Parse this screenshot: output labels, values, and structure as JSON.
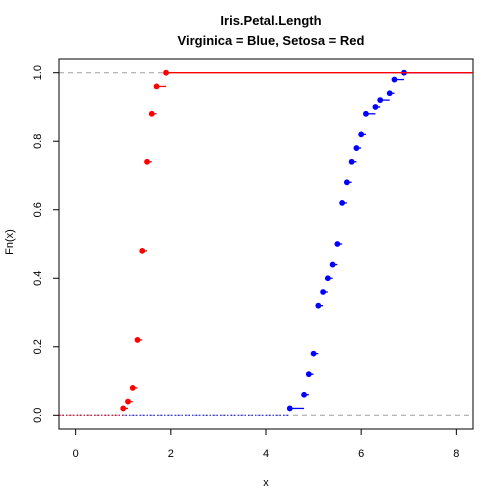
{
  "chart_data": {
    "type": "scatter",
    "subtype": "ecdf-step",
    "title": "Iris.Petal.Length",
    "subtitle": "Virginica = Blue, Setosa = Red",
    "xlabel": "x",
    "ylabel": "Fn(x)",
    "xlim": [
      -0.35,
      8.35
    ],
    "ylim": [
      -0.04,
      1.04
    ],
    "x_ticks": [
      "0",
      "2",
      "4",
      "6",
      "8"
    ],
    "y_ticks": [
      "0.0",
      "0.2",
      "0.4",
      "0.6",
      "0.8",
      "1.0"
    ],
    "grid": false,
    "reference_lines_y": [
      0,
      1
    ],
    "series": [
      {
        "color": "#0000ff",
        "points": [
          {
            "x": 4.5,
            "y": 0.02
          },
          {
            "x": 4.8,
            "y": 0.06
          },
          {
            "x": 4.9,
            "y": 0.12
          },
          {
            "x": 5.0,
            "y": 0.18
          },
          {
            "x": 5.1,
            "y": 0.32
          },
          {
            "x": 5.2,
            "y": 0.36
          },
          {
            "x": 5.3,
            "y": 0.4
          },
          {
            "x": 5.4,
            "y": 0.44
          },
          {
            "x": 5.5,
            "y": 0.5
          },
          {
            "x": 5.6,
            "y": 0.62
          },
          {
            "x": 5.7,
            "y": 0.68
          },
          {
            "x": 5.8,
            "y": 0.74
          },
          {
            "x": 5.9,
            "y": 0.78
          },
          {
            "x": 6.0,
            "y": 0.82
          },
          {
            "x": 6.1,
            "y": 0.88
          },
          {
            "x": 6.3,
            "y": 0.9
          },
          {
            "x": 6.4,
            "y": 0.92
          },
          {
            "x": 6.6,
            "y": 0.94
          },
          {
            "x": 6.7,
            "y": 0.98
          },
          {
            "x": 6.9,
            "y": 1.0
          }
        ]
      },
      {
        "color": "#ff0000",
        "points": [
          {
            "x": 1.0,
            "y": 0.02
          },
          {
            "x": 1.1,
            "y": 0.04
          },
          {
            "x": 1.2,
            "y": 0.08
          },
          {
            "x": 1.3,
            "y": 0.22
          },
          {
            "x": 1.4,
            "y": 0.48
          },
          {
            "x": 1.5,
            "y": 0.74
          },
          {
            "x": 1.6,
            "y": 0.88
          },
          {
            "x": 1.7,
            "y": 0.96
          },
          {
            "x": 1.9,
            "y": 1.0
          }
        ]
      }
    ]
  }
}
